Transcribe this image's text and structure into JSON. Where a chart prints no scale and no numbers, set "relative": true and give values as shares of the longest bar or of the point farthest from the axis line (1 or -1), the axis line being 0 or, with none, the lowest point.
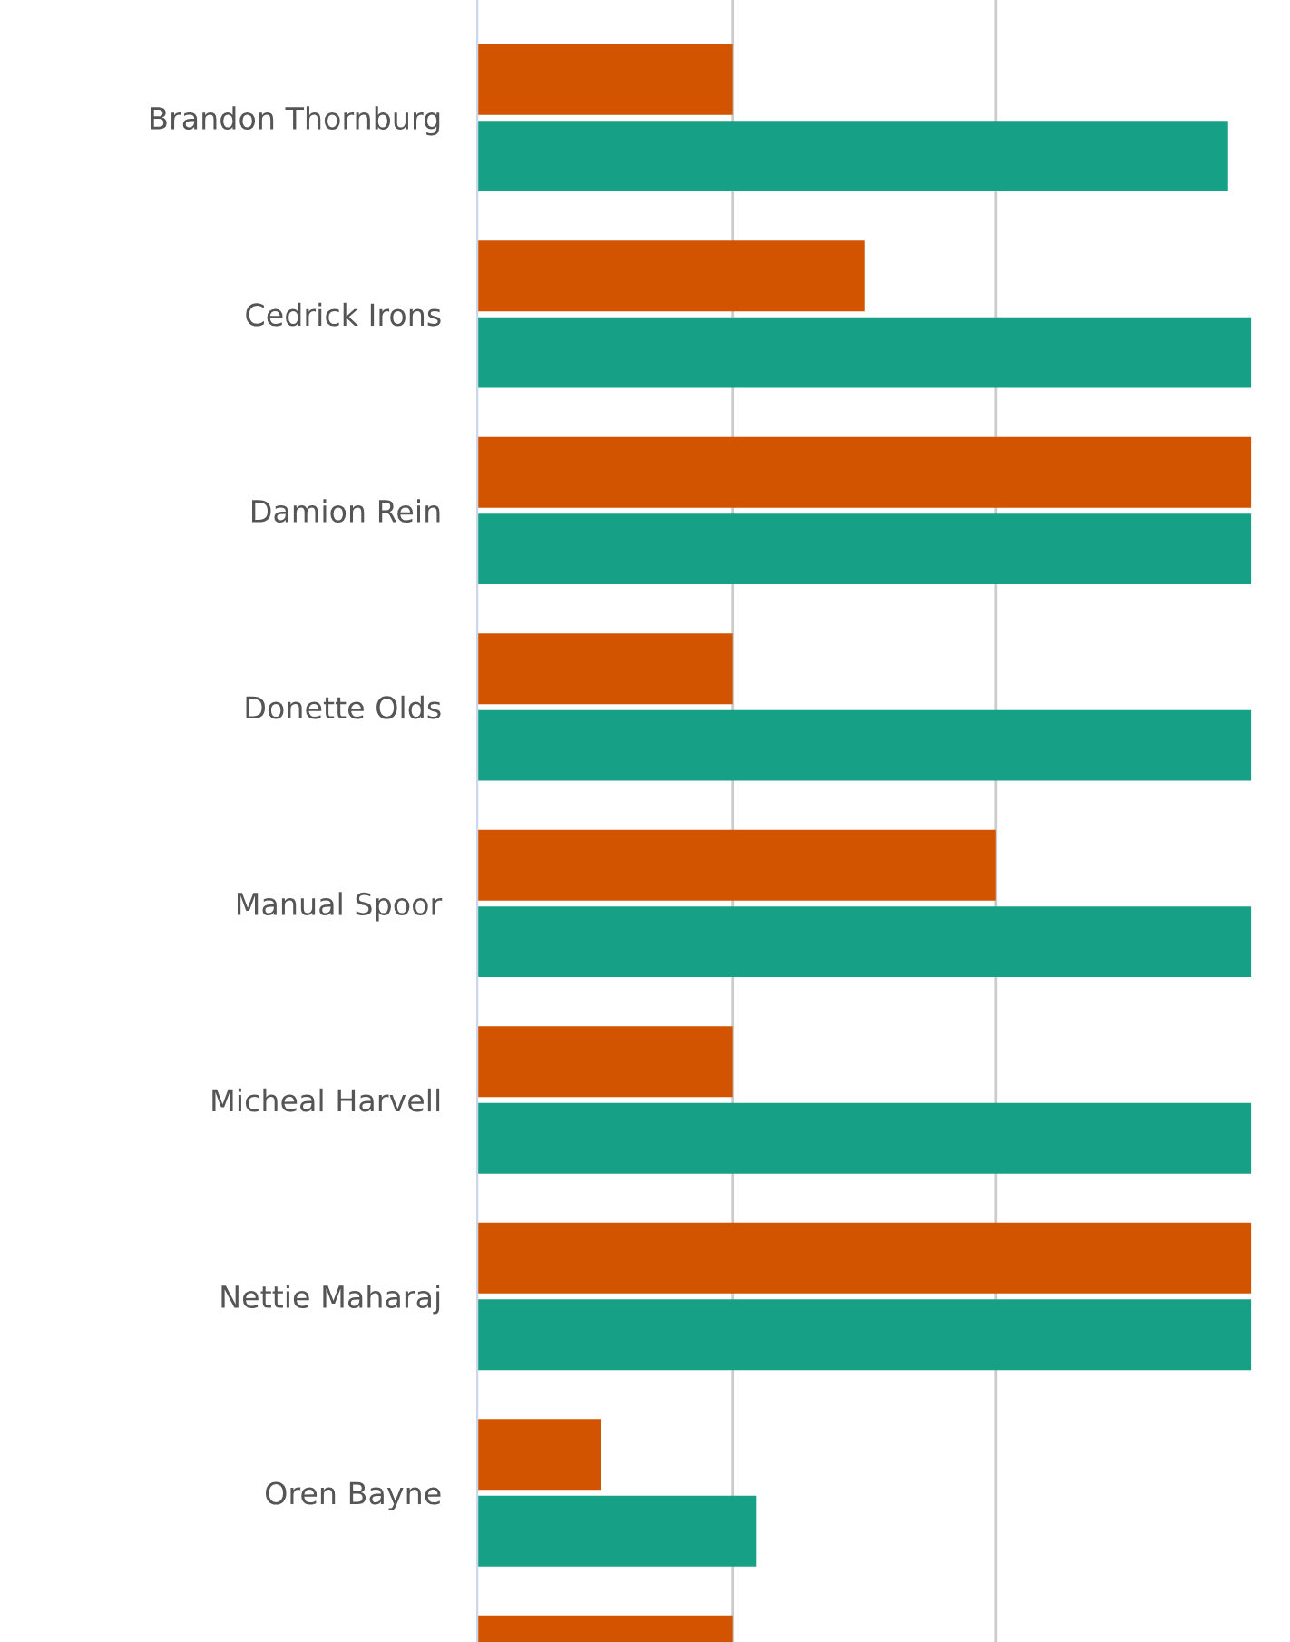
{
  "chart_data": {
    "type": "bar",
    "orientation": "horizontal",
    "relative": true,
    "ref_lines": [
      {
        "axis": "x",
        "value": 0.33,
        "color": "#cccccc"
      },
      {
        "axis": "x",
        "value": 0.67,
        "color": "#cccccc"
      }
    ],
    "categories": [
      "Brandon Thornburg",
      "Cedrick Irons",
      "Damion Rein",
      "Donette Olds",
      "Manual Spoor",
      "Micheal Harvell",
      "Nettie Maharaj",
      "Oren Bayne",
      null
    ],
    "series": [
      {
        "color": "#d35400",
        "values": [
          0.33,
          0.5,
          1,
          0.33,
          0.67,
          0.33,
          1,
          0.16,
          0.33
        ]
      },
      {
        "color": "#16a085",
        "values": [
          0.97,
          1,
          1,
          1,
          1,
          1,
          1,
          0.36,
          null
        ]
      }
    ]
  }
}
